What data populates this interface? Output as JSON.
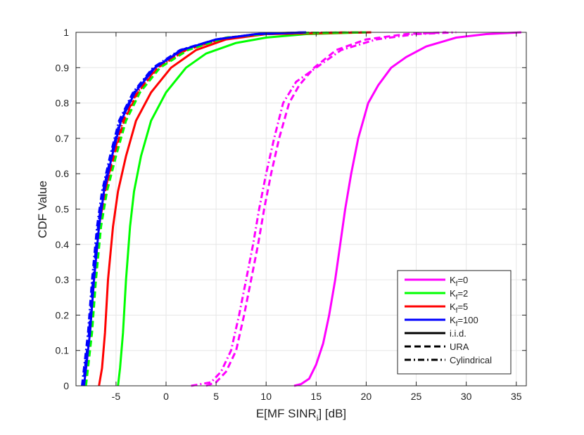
{
  "chart_data": {
    "type": "line",
    "title": "",
    "xlabel": "E[MF SINR",
    "xlabel_sub": "i",
    "xlabel_suffix": "] [dB]",
    "ylabel": "CDF Value",
    "xlim": [
      -9,
      36
    ],
    "ylim": [
      0,
      1
    ],
    "xticks": [
      "-5",
      "0",
      "5",
      "10",
      "15",
      "20",
      "25",
      "30",
      "35"
    ],
    "yticks": [
      "0",
      "0.1",
      "0.2",
      "0.3",
      "0.4",
      "0.5",
      "0.6",
      "0.7",
      "0.8",
      "0.9",
      "1"
    ],
    "grid": true,
    "legend_position": "bottom-right",
    "legend": [
      {
        "main": "K",
        "sub": "f",
        "suffix": "=0",
        "color": "#ff00ff",
        "style": "solid"
      },
      {
        "main": "K",
        "sub": "f",
        "suffix": "=2",
        "color": "#00ff00",
        "style": "solid"
      },
      {
        "main": "K",
        "sub": "f",
        "suffix": "=5",
        "color": "#ff0000",
        "style": "solid"
      },
      {
        "main": "K",
        "sub": "f",
        "suffix": "=100",
        "color": "#0000ff",
        "style": "solid"
      },
      {
        "main": "i.i.d.",
        "sub": "",
        "suffix": "",
        "color": "#000000",
        "style": "solid"
      },
      {
        "main": "URA",
        "sub": "",
        "suffix": "",
        "color": "#000000",
        "style": "dashed"
      },
      {
        "main": "Cylindrical",
        "sub": "",
        "suffix": "",
        "color": "#000000",
        "style": "dashdot"
      }
    ],
    "series": [
      {
        "name": "Kf=0 i.i.d.",
        "color": "#ff00ff",
        "style": "solid",
        "points": [
          [
            12.8,
            0
          ],
          [
            13.5,
            0.005
          ],
          [
            14.3,
            0.02
          ],
          [
            15.0,
            0.06
          ],
          [
            15.7,
            0.12
          ],
          [
            16.3,
            0.2
          ],
          [
            16.9,
            0.3
          ],
          [
            17.4,
            0.4
          ],
          [
            17.9,
            0.5
          ],
          [
            18.5,
            0.6
          ],
          [
            19.2,
            0.7
          ],
          [
            20.2,
            0.8
          ],
          [
            21.2,
            0.85
          ],
          [
            22.5,
            0.9
          ],
          [
            24.0,
            0.93
          ],
          [
            26.0,
            0.96
          ],
          [
            29.0,
            0.985
          ],
          [
            32.0,
            0.995
          ],
          [
            35.5,
            1.0
          ]
        ]
      },
      {
        "name": "Kf=0 URA",
        "color": "#ff00ff",
        "style": "dashed",
        "points": [
          [
            4.0,
            0
          ],
          [
            5.0,
            0.01
          ],
          [
            6.0,
            0.04
          ],
          [
            7.0,
            0.1
          ],
          [
            7.8,
            0.2
          ],
          [
            8.5,
            0.3
          ],
          [
            9.2,
            0.4
          ],
          [
            9.8,
            0.5
          ],
          [
            10.5,
            0.6
          ],
          [
            11.3,
            0.7
          ],
          [
            12.3,
            0.8
          ],
          [
            13.3,
            0.85
          ],
          [
            14.8,
            0.9
          ],
          [
            17.0,
            0.95
          ],
          [
            20.0,
            0.98
          ],
          [
            24.0,
            0.995
          ],
          [
            28.0,
            1.0
          ]
        ]
      },
      {
        "name": "Kf=0 Cylindrical",
        "color": "#ff00ff",
        "style": "dashdot",
        "points": [
          [
            2.5,
            0
          ],
          [
            4.5,
            0.01
          ],
          [
            5.5,
            0.04
          ],
          [
            6.5,
            0.1
          ],
          [
            7.3,
            0.2
          ],
          [
            8.0,
            0.3
          ],
          [
            8.7,
            0.4
          ],
          [
            9.3,
            0.5
          ],
          [
            10.0,
            0.6
          ],
          [
            10.8,
            0.7
          ],
          [
            11.7,
            0.8
          ],
          [
            13.0,
            0.86
          ],
          [
            15.0,
            0.9
          ],
          [
            17.5,
            0.95
          ],
          [
            21.0,
            0.98
          ],
          [
            25.0,
            0.995
          ],
          [
            29.0,
            1.0
          ]
        ]
      },
      {
        "name": "Kf=2 i.i.d.",
        "color": "#00ff00",
        "style": "solid",
        "points": [
          [
            -4.8,
            0
          ],
          [
            -4.6,
            0.05
          ],
          [
            -4.3,
            0.15
          ],
          [
            -4.0,
            0.3
          ],
          [
            -3.6,
            0.45
          ],
          [
            -3.2,
            0.55
          ],
          [
            -2.5,
            0.65
          ],
          [
            -1.5,
            0.75
          ],
          [
            0.0,
            0.83
          ],
          [
            2.0,
            0.9
          ],
          [
            4.0,
            0.94
          ],
          [
            7.0,
            0.97
          ],
          [
            10.0,
            0.985
          ],
          [
            14.0,
            0.995
          ],
          [
            20.0,
            1.0
          ]
        ]
      },
      {
        "name": "Kf=5 i.i.d.",
        "color": "#ff0000",
        "style": "solid",
        "points": [
          [
            -6.7,
            0
          ],
          [
            -6.4,
            0.05
          ],
          [
            -6.1,
            0.15
          ],
          [
            -5.8,
            0.3
          ],
          [
            -5.3,
            0.45
          ],
          [
            -4.8,
            0.55
          ],
          [
            -4.0,
            0.65
          ],
          [
            -3.0,
            0.75
          ],
          [
            -1.5,
            0.83
          ],
          [
            0.5,
            0.9
          ],
          [
            3.0,
            0.95
          ],
          [
            6.0,
            0.98
          ],
          [
            10.0,
            0.995
          ],
          [
            20.5,
            1.0
          ]
        ]
      },
      {
        "name": "Kf=5 URA",
        "color": "#ff0000",
        "style": "dashed",
        "points": [
          [
            -8.2,
            0
          ],
          [
            -7.9,
            0.05
          ],
          [
            -7.5,
            0.15
          ],
          [
            -7.1,
            0.3
          ],
          [
            -6.6,
            0.45
          ],
          [
            -6.0,
            0.55
          ],
          [
            -5.2,
            0.65
          ],
          [
            -4.2,
            0.75
          ],
          [
            -2.8,
            0.83
          ],
          [
            -0.8,
            0.9
          ],
          [
            2.0,
            0.95
          ],
          [
            6.0,
            0.985
          ],
          [
            11.0,
            0.998
          ],
          [
            20.0,
            1.0
          ]
        ]
      },
      {
        "name": "Kf=5 Cylindrical",
        "color": "#ff0000",
        "style": "dashdot",
        "points": [
          [
            -8.3,
            0
          ],
          [
            -8.0,
            0.05
          ],
          [
            -7.6,
            0.15
          ],
          [
            -7.2,
            0.3
          ],
          [
            -6.7,
            0.45
          ],
          [
            -6.1,
            0.55
          ],
          [
            -5.3,
            0.65
          ],
          [
            -4.3,
            0.75
          ],
          [
            -2.9,
            0.83
          ],
          [
            -0.9,
            0.9
          ],
          [
            2.0,
            0.95
          ],
          [
            6.0,
            0.985
          ],
          [
            11.0,
            0.998
          ],
          [
            20.0,
            1.0
          ]
        ]
      },
      {
        "name": "Kf=2 URA",
        "color": "#00ff00",
        "style": "dashed",
        "points": [
          [
            -8.0,
            0
          ],
          [
            -7.8,
            0.05
          ],
          [
            -7.4,
            0.15
          ],
          [
            -7.0,
            0.3
          ],
          [
            -6.5,
            0.45
          ],
          [
            -5.9,
            0.55
          ],
          [
            -5.0,
            0.65
          ],
          [
            -4.0,
            0.75
          ],
          [
            -2.6,
            0.83
          ],
          [
            -0.6,
            0.9
          ],
          [
            2.2,
            0.95
          ],
          [
            6.0,
            0.985
          ],
          [
            11.0,
            0.998
          ],
          [
            20.0,
            1.0
          ]
        ]
      },
      {
        "name": "Kf=100 URA",
        "color": "#0000ff",
        "style": "dashed",
        "points": [
          [
            -8.3,
            0
          ],
          [
            -8.1,
            0.05
          ],
          [
            -7.7,
            0.15
          ],
          [
            -7.3,
            0.3
          ],
          [
            -6.8,
            0.45
          ],
          [
            -6.3,
            0.55
          ],
          [
            -5.5,
            0.65
          ],
          [
            -4.6,
            0.75
          ],
          [
            -3.2,
            0.83
          ],
          [
            -1.2,
            0.9
          ],
          [
            1.5,
            0.95
          ],
          [
            5.0,
            0.98
          ],
          [
            9.0,
            0.995
          ],
          [
            14.0,
            1.0
          ]
        ]
      },
      {
        "name": "Kf=100 Cylindrical",
        "color": "#0000ff",
        "style": "dashdot",
        "points": [
          [
            -8.4,
            0
          ],
          [
            -8.2,
            0.05
          ],
          [
            -7.8,
            0.15
          ],
          [
            -7.4,
            0.3
          ],
          [
            -6.9,
            0.45
          ],
          [
            -6.4,
            0.55
          ],
          [
            -5.6,
            0.65
          ],
          [
            -4.7,
            0.75
          ],
          [
            -3.3,
            0.83
          ],
          [
            -1.3,
            0.9
          ],
          [
            1.4,
            0.95
          ],
          [
            5.0,
            0.98
          ],
          [
            9.0,
            0.995
          ],
          [
            14.0,
            1.0
          ]
        ]
      },
      {
        "name": "Kf=100 i.i.d.",
        "color": "#0000ff",
        "style": "solid",
        "points": [
          [
            -8.2,
            0
          ],
          [
            -8.0,
            0.05
          ],
          [
            -7.6,
            0.15
          ],
          [
            -7.2,
            0.3
          ],
          [
            -6.7,
            0.45
          ],
          [
            -6.2,
            0.55
          ],
          [
            -5.4,
            0.65
          ],
          [
            -4.5,
            0.75
          ],
          [
            -3.1,
            0.83
          ],
          [
            -1.1,
            0.9
          ],
          [
            1.6,
            0.95
          ],
          [
            5.0,
            0.98
          ],
          [
            9.0,
            0.995
          ],
          [
            14.0,
            1.0
          ]
        ]
      }
    ]
  }
}
